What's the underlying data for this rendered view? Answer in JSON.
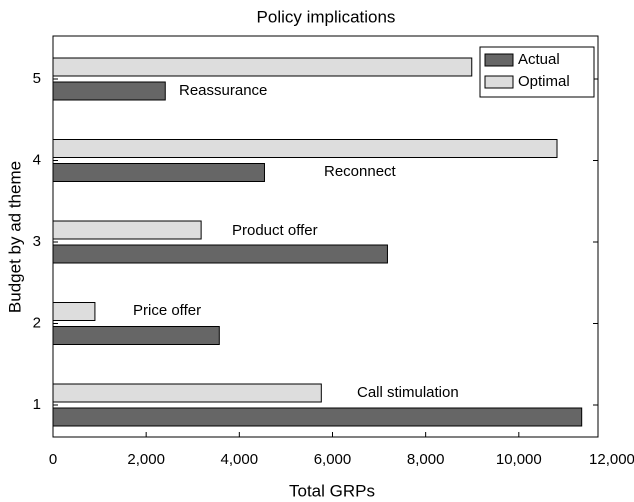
{
  "chart_data": {
    "type": "hbar",
    "title": "Policy implications",
    "x_label": "Total GRPs",
    "y_label": "Budget by ad theme",
    "categories": [
      "1",
      "2",
      "3",
      "4",
      "5"
    ],
    "themes": [
      "Call stimulation",
      "Price offer",
      "Product offer",
      "Reconnect",
      "Reassurance"
    ],
    "series": [
      {
        "name": "Actual",
        "color": "#666666",
        "values": [
          11350,
          3570,
          7180,
          4540,
          2410
        ]
      },
      {
        "name": "Optimal",
        "color": "#dddddd",
        "values": [
          5760,
          900,
          3180,
          10820,
          8990
        ]
      }
    ],
    "xlim": [
      0,
      11700
    ],
    "xticks": [
      0,
      {
        "value": 2000,
        "label": "2,000"
      },
      {
        "value": 4000,
        "label": "4,000"
      },
      {
        "value": 6000,
        "label": "6,000"
      },
      {
        "value": 8000,
        "label": "8,000"
      },
      {
        "value": 10000,
        "label": "10,000"
      },
      {
        "value": 12000,
        "label": "12,000"
      }
    ],
    "legend": "top-right"
  }
}
